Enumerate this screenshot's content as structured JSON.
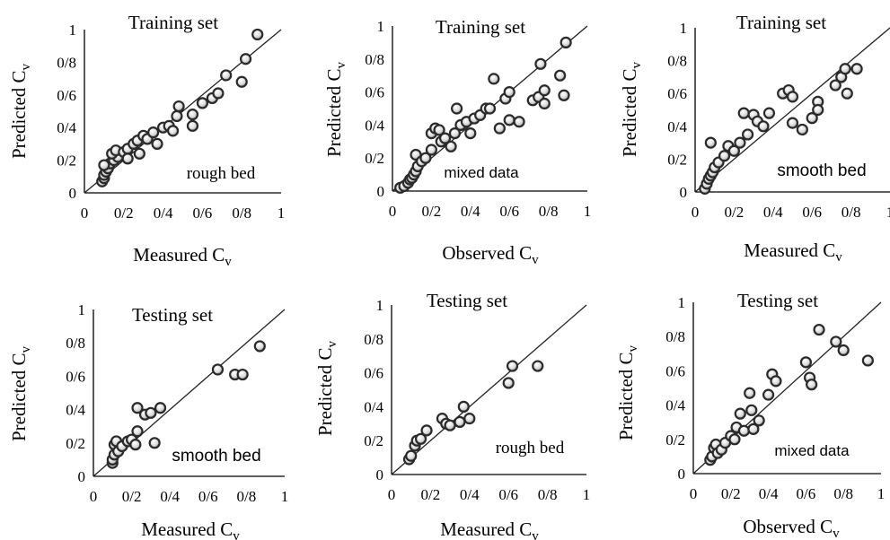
{
  "chart_data": [
    {
      "type": "scatter",
      "title": "Training set",
      "annotation": "rough bed",
      "xlabel": "Measured C",
      "xlabel_sub": "v",
      "ylabel": "Predicted C",
      "ylabel_sub": "v",
      "xlim": [
        0,
        1
      ],
      "ylim": [
        0,
        1
      ],
      "xticks": [
        "0",
        "0/2",
        "0/4",
        "0/6",
        "0/8",
        "1"
      ],
      "yticks": [
        "0",
        "0/2",
        "0/4",
        "0/6",
        "0/8",
        "1"
      ],
      "reference_line": "y = x",
      "points": [
        [
          0.09,
          0.07
        ],
        [
          0.1,
          0.09
        ],
        [
          0.1,
          0.11
        ],
        [
          0.11,
          0.13
        ],
        [
          0.12,
          0.15
        ],
        [
          0.13,
          0.18
        ],
        [
          0.15,
          0.2
        ],
        [
          0.17,
          0.22
        ],
        [
          0.1,
          0.17
        ],
        [
          0.14,
          0.24
        ],
        [
          0.16,
          0.26
        ],
        [
          0.2,
          0.25
        ],
        [
          0.22,
          0.27
        ],
        [
          0.22,
          0.21
        ],
        [
          0.25,
          0.3
        ],
        [
          0.27,
          0.32
        ],
        [
          0.28,
          0.24
        ],
        [
          0.3,
          0.35
        ],
        [
          0.32,
          0.33
        ],
        [
          0.35,
          0.37
        ],
        [
          0.37,
          0.3
        ],
        [
          0.4,
          0.4
        ],
        [
          0.43,
          0.41
        ],
        [
          0.45,
          0.38
        ],
        [
          0.47,
          0.47
        ],
        [
          0.48,
          0.53
        ],
        [
          0.55,
          0.48
        ],
        [
          0.55,
          0.41
        ],
        [
          0.6,
          0.55
        ],
        [
          0.65,
          0.58
        ],
        [
          0.68,
          0.61
        ],
        [
          0.72,
          0.72
        ],
        [
          0.8,
          0.68
        ],
        [
          0.82,
          0.82
        ],
        [
          0.88,
          0.97
        ]
      ]
    },
    {
      "type": "scatter",
      "title": "Training set",
      "annotation": "mixed data",
      "xlabel": "Observed C",
      "xlabel_sub": "v",
      "ylabel": "Predicted C",
      "ylabel_sub": "v",
      "xlim": [
        0,
        1
      ],
      "ylim": [
        0,
        1
      ],
      "xticks": [
        "0",
        "0/2",
        "0/4",
        "0/6",
        "0/8",
        "1"
      ],
      "yticks": [
        "0",
        "0/2",
        "0/4",
        "0/6",
        "0/8",
        "1"
      ],
      "reference_line": "y = x",
      "points": [
        [
          0.04,
          0.02
        ],
        [
          0.06,
          0.03
        ],
        [
          0.08,
          0.05
        ],
        [
          0.09,
          0.07
        ],
        [
          0.1,
          0.08
        ],
        [
          0.11,
          0.1
        ],
        [
          0.12,
          0.12
        ],
        [
          0.13,
          0.15
        ],
        [
          0.12,
          0.22
        ],
        [
          0.15,
          0.18
        ],
        [
          0.17,
          0.2
        ],
        [
          0.2,
          0.25
        ],
        [
          0.2,
          0.35
        ],
        [
          0.22,
          0.38
        ],
        [
          0.24,
          0.37
        ],
        [
          0.25,
          0.3
        ],
        [
          0.27,
          0.32
        ],
        [
          0.3,
          0.27
        ],
        [
          0.32,
          0.35
        ],
        [
          0.33,
          0.5
        ],
        [
          0.35,
          0.4
        ],
        [
          0.38,
          0.42
        ],
        [
          0.4,
          0.35
        ],
        [
          0.42,
          0.44
        ],
        [
          0.45,
          0.46
        ],
        [
          0.48,
          0.5
        ],
        [
          0.5,
          0.5
        ],
        [
          0.52,
          0.68
        ],
        [
          0.55,
          0.38
        ],
        [
          0.58,
          0.56
        ],
        [
          0.6,
          0.6
        ],
        [
          0.6,
          0.43
        ],
        [
          0.65,
          0.42
        ],
        [
          0.72,
          0.55
        ],
        [
          0.75,
          0.57
        ],
        [
          0.76,
          0.77
        ],
        [
          0.78,
          0.61
        ],
        [
          0.78,
          0.53
        ],
        [
          0.86,
          0.7
        ],
        [
          0.88,
          0.58
        ],
        [
          0.89,
          0.9
        ]
      ]
    },
    {
      "type": "scatter",
      "title": "Training set",
      "annotation": "smooth bed",
      "xlabel": "Measured C",
      "xlabel_sub": "v",
      "ylabel": "Predicted C",
      "ylabel_sub": "v",
      "xlim": [
        0,
        1
      ],
      "ylim": [
        0,
        1
      ],
      "xticks": [
        "0",
        "0/2",
        "0/4",
        "0/6",
        "0/8",
        "1"
      ],
      "yticks": [
        "0",
        "0/2",
        "0/4",
        "0/6",
        "0/8",
        "1"
      ],
      "reference_line": "y = x",
      "points": [
        [
          0.05,
          0.02
        ],
        [
          0.06,
          0.05
        ],
        [
          0.07,
          0.08
        ],
        [
          0.08,
          0.1
        ],
        [
          0.09,
          0.12
        ],
        [
          0.1,
          0.15
        ],
        [
          0.08,
          0.3
        ],
        [
          0.12,
          0.18
        ],
        [
          0.15,
          0.22
        ],
        [
          0.17,
          0.28
        ],
        [
          0.2,
          0.25
        ],
        [
          0.23,
          0.3
        ],
        [
          0.25,
          0.48
        ],
        [
          0.27,
          0.35
        ],
        [
          0.3,
          0.47
        ],
        [
          0.32,
          0.43
        ],
        [
          0.35,
          0.4
        ],
        [
          0.38,
          0.48
        ],
        [
          0.45,
          0.6
        ],
        [
          0.48,
          0.62
        ],
        [
          0.5,
          0.58
        ],
        [
          0.5,
          0.42
        ],
        [
          0.55,
          0.38
        ],
        [
          0.6,
          0.45
        ],
        [
          0.63,
          0.55
        ],
        [
          0.63,
          0.5
        ],
        [
          0.72,
          0.65
        ],
        [
          0.75,
          0.7
        ],
        [
          0.77,
          0.75
        ],
        [
          0.78,
          0.6
        ],
        [
          0.83,
          0.75
        ]
      ]
    },
    {
      "type": "scatter",
      "title": "Testing set",
      "annotation": "smooth bed",
      "xlabel": "Measured C",
      "xlabel_sub": "v",
      "ylabel": "Predicted C",
      "ylabel_sub": "v",
      "xlim": [
        0,
        1
      ],
      "ylim": [
        0,
        1
      ],
      "xticks": [
        "0",
        "0/2",
        "0/4",
        "0/6",
        "0/8",
        "1"
      ],
      "yticks": [
        "0",
        "0/2",
        "0/4",
        "0/6",
        "0/8",
        "1"
      ],
      "reference_line": "y = x",
      "points": [
        [
          0.1,
          0.08
        ],
        [
          0.1,
          0.1
        ],
        [
          0.11,
          0.13
        ],
        [
          0.11,
          0.19
        ],
        [
          0.12,
          0.21
        ],
        [
          0.13,
          0.15
        ],
        [
          0.15,
          0.18
        ],
        [
          0.18,
          0.21
        ],
        [
          0.2,
          0.22
        ],
        [
          0.22,
          0.19
        ],
        [
          0.23,
          0.27
        ],
        [
          0.23,
          0.41
        ],
        [
          0.27,
          0.37
        ],
        [
          0.3,
          0.38
        ],
        [
          0.32,
          0.2
        ],
        [
          0.35,
          0.41
        ],
        [
          0.65,
          0.64
        ],
        [
          0.74,
          0.61
        ],
        [
          0.78,
          0.61
        ],
        [
          0.87,
          0.78
        ]
      ]
    },
    {
      "type": "scatter",
      "title": "Testing set",
      "annotation": "rough bed",
      "xlabel": "Measured C",
      "xlabel_sub": "v",
      "ylabel": "Predicted C",
      "ylabel_sub": "v",
      "xlim": [
        0,
        1
      ],
      "ylim": [
        0,
        1
      ],
      "xticks": [
        "0",
        "0/2",
        "0/4",
        "0/6",
        "0/8",
        "1"
      ],
      "yticks": [
        "0",
        "0/2",
        "0/4",
        "0/6",
        "0/8",
        "1"
      ],
      "reference_line": "y = x",
      "points": [
        [
          0.09,
          0.09
        ],
        [
          0.1,
          0.11
        ],
        [
          0.12,
          0.17
        ],
        [
          0.13,
          0.2
        ],
        [
          0.15,
          0.21
        ],
        [
          0.18,
          0.26
        ],
        [
          0.26,
          0.33
        ],
        [
          0.28,
          0.3
        ],
        [
          0.3,
          0.29
        ],
        [
          0.35,
          0.31
        ],
        [
          0.37,
          0.4
        ],
        [
          0.4,
          0.33
        ],
        [
          0.6,
          0.54
        ],
        [
          0.62,
          0.64
        ],
        [
          0.75,
          0.64
        ]
      ]
    },
    {
      "type": "scatter",
      "title": "Testing set",
      "annotation": "mixed data",
      "xlabel": "Observed C",
      "xlabel_sub": "v",
      "ylabel": "Predicted C",
      "ylabel_sub": "v",
      "xlim": [
        0,
        1
      ],
      "ylim": [
        0,
        1
      ],
      "xticks": [
        "0",
        "0/2",
        "0/4",
        "0/6",
        "0/8",
        "1"
      ],
      "yticks": [
        "0",
        "0/2",
        "0/4",
        "0/6",
        "0/8",
        "1"
      ],
      "reference_line": "y = x",
      "points": [
        [
          0.09,
          0.08
        ],
        [
          0.1,
          0.1
        ],
        [
          0.11,
          0.15
        ],
        [
          0.12,
          0.17
        ],
        [
          0.13,
          0.12
        ],
        [
          0.15,
          0.14
        ],
        [
          0.17,
          0.18
        ],
        [
          0.2,
          0.22
        ],
        [
          0.22,
          0.2
        ],
        [
          0.23,
          0.27
        ],
        [
          0.25,
          0.35
        ],
        [
          0.27,
          0.25
        ],
        [
          0.3,
          0.47
        ],
        [
          0.31,
          0.37
        ],
        [
          0.32,
          0.26
        ],
        [
          0.35,
          0.31
        ],
        [
          0.4,
          0.46
        ],
        [
          0.42,
          0.58
        ],
        [
          0.44,
          0.54
        ],
        [
          0.6,
          0.65
        ],
        [
          0.62,
          0.56
        ],
        [
          0.63,
          0.52
        ],
        [
          0.67,
          0.84
        ],
        [
          0.76,
          0.77
        ],
        [
          0.8,
          0.72
        ],
        [
          0.93,
          0.66
        ]
      ]
    }
  ]
}
